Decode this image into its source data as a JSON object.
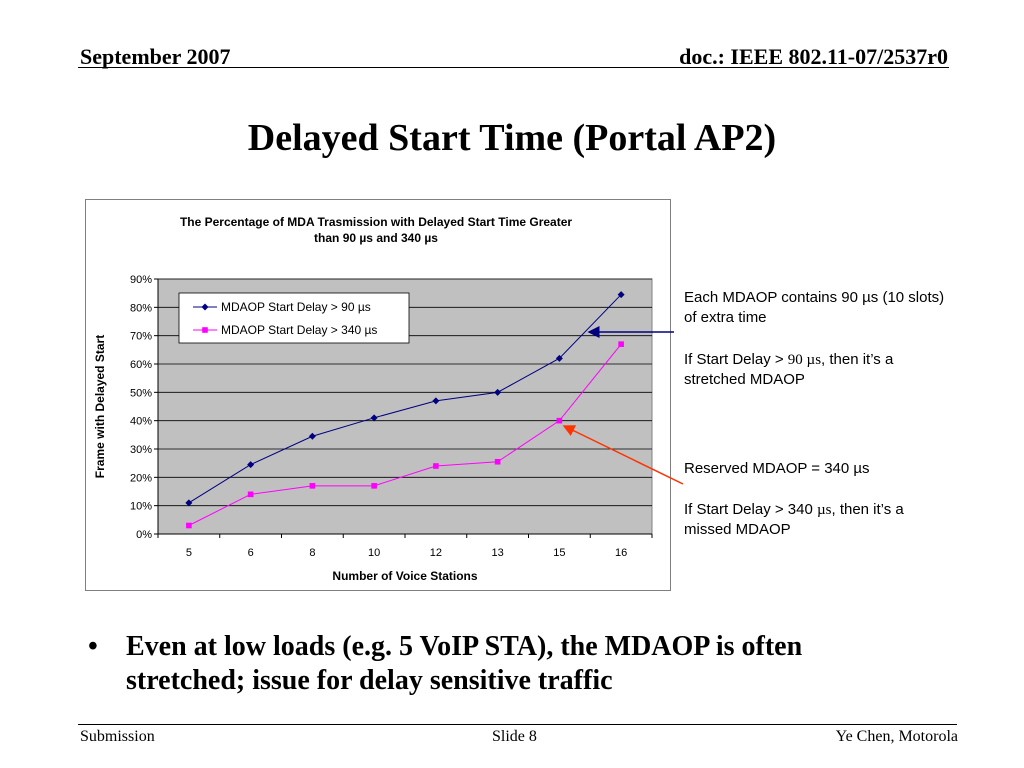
{
  "header": {
    "date": "September 2007",
    "doc_id": "doc.: IEEE 802.11-07/2537r0"
  },
  "slide_title": "Delayed Start Time (Portal AP2)",
  "chart_data": {
    "type": "line",
    "title_line1": "The Percentage of MDA Trasmission with Delayed Start Time Greater",
    "title_line2": "than 90 µs  and 340 µs",
    "xlabel": "Number of Voice Stations",
    "ylabel": "Frame with Delayed Start",
    "categories": [
      "5",
      "6",
      "8",
      "10",
      "12",
      "13",
      "15",
      "16"
    ],
    "y_ticks": [
      "0%",
      "10%",
      "20%",
      "30%",
      "40%",
      "50%",
      "60%",
      "70%",
      "80%",
      "90%"
    ],
    "ylim": [
      0,
      90
    ],
    "grid": true,
    "legend_position": "top-left",
    "series": [
      {
        "name": "MDAOP Start Delay > 90 µs",
        "color": "#000080",
        "marker": "diamond",
        "values": [
          11,
          24.5,
          34.5,
          41,
          47,
          50,
          62,
          84.5
        ]
      },
      {
        "name": "MDAOP Start Delay > 340 µs",
        "color": "#FF00FF",
        "marker": "square",
        "values": [
          3,
          14,
          17,
          17,
          24,
          25.5,
          40,
          67
        ]
      }
    ],
    "colors": {
      "plot_bg": "#C0C0C0",
      "grid": "#000000"
    }
  },
  "annotations": {
    "a1_line1": "Each MDAOP contains 90 µs (10 slots) of extra time",
    "a2_pre": "If Start Delay > ",
    "a2_mu": "90 µs",
    "a2_post": ", then it’s a stretched MDAOP",
    "a3": "Reserved MDAOP = 340 µs",
    "a4_pre": "If Start Delay > 340 ",
    "a4_mu": "µs",
    "a4_post": ", then it’s a missed MDAOP",
    "arrow1_color": "#000080",
    "arrow2_color": "#FF3300"
  },
  "bullet": {
    "symbol": "•",
    "text": "Even at low loads (e.g. 5 VoIP STA), the MDAOP is often stretched; issue for delay sensitive traffic"
  },
  "footer": {
    "left": "Submission",
    "center": "Slide 8",
    "right": "Ye Chen, Motorola"
  }
}
